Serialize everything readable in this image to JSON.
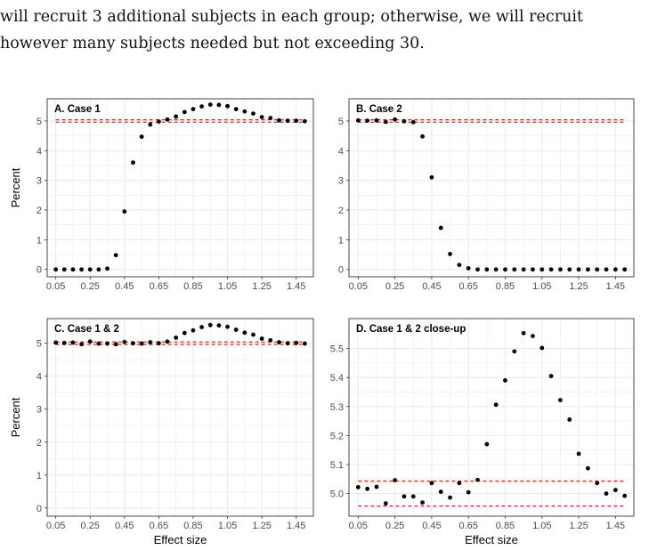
{
  "text": {
    "line1": "will recruit 3 additional subjects in each group; otherwise, we will recruit",
    "line2": "however many subjects needed but not exceeding 30."
  },
  "colors": {
    "points": "#000000",
    "reference_lines": "#e41a1c",
    "grid": "#ebebeb",
    "frame": "#333333"
  },
  "chart_data": [
    {
      "type": "scatter",
      "title": "A. Case 1",
      "xlabel": "",
      "ylabel": "Percent",
      "xlim": [
        0.05,
        1.5
      ],
      "ylim": [
        0,
        5.5
      ],
      "xticks": [
        "0.05",
        "0.25",
        "0.45",
        "0.65",
        "0.85",
        "1.05",
        "1.25",
        "1.45"
      ],
      "yticks": [
        "0",
        "1",
        "2",
        "3",
        "4",
        "5"
      ],
      "hlines": [
        4.96,
        5.04
      ],
      "x": [
        0.05,
        0.1,
        0.15,
        0.2,
        0.25,
        0.3,
        0.35,
        0.4,
        0.45,
        0.5,
        0.55,
        0.6,
        0.65,
        0.7,
        0.75,
        0.8,
        0.85,
        0.9,
        0.95,
        1.0,
        1.05,
        1.1,
        1.15,
        1.2,
        1.25,
        1.3,
        1.35,
        1.4,
        1.45,
        1.5
      ],
      "y": [
        0,
        0,
        0,
        0,
        0,
        0,
        0.03,
        0.48,
        1.95,
        3.6,
        4.47,
        4.88,
        4.98,
        5.05,
        5.15,
        5.3,
        5.4,
        5.49,
        5.55,
        5.54,
        5.5,
        5.4,
        5.32,
        5.25,
        5.13,
        5.1,
        5.02,
        5.01,
        5.01,
        4.99
      ]
    },
    {
      "type": "scatter",
      "title": "B. Case 2",
      "xlabel": "",
      "ylabel": "",
      "xlim": [
        0.05,
        1.5
      ],
      "ylim": [
        0,
        5.5
      ],
      "xticks": [
        "0.05",
        "0.25",
        "0.45",
        "0.65",
        "0.85",
        "1.05",
        "1.25",
        "1.45"
      ],
      "yticks": [
        "0",
        "1",
        "2",
        "3",
        "4",
        "5"
      ],
      "hlines": [
        4.96,
        5.04
      ],
      "x": [
        0.05,
        0.1,
        0.15,
        0.2,
        0.25,
        0.3,
        0.35,
        0.4,
        0.45,
        0.5,
        0.55,
        0.6,
        0.65,
        0.7,
        0.75,
        0.8,
        0.85,
        0.9,
        0.95,
        1.0,
        1.05,
        1.1,
        1.15,
        1.2,
        1.25,
        1.3,
        1.35,
        1.4,
        1.45,
        1.5
      ],
      "y": [
        5.02,
        5.01,
        5.02,
        4.97,
        5.05,
        4.99,
        4.96,
        4.48,
        3.1,
        1.4,
        0.52,
        0.15,
        0.04,
        0,
        0,
        0,
        0,
        0,
        0,
        0,
        0,
        0,
        0,
        0,
        0,
        0,
        0,
        0,
        0,
        0
      ]
    },
    {
      "type": "scatter",
      "title": "C. Case 1 & 2",
      "xlabel": "Effect size",
      "ylabel": "Percent",
      "xlim": [
        0.05,
        1.5
      ],
      "ylim": [
        0,
        5.5
      ],
      "xticks": [
        "0.05",
        "0.25",
        "0.45",
        "0.65",
        "0.85",
        "1.05",
        "1.25",
        "1.45"
      ],
      "yticks": [
        "0",
        "1",
        "2",
        "3",
        "4",
        "5"
      ],
      "hlines": [
        4.96,
        5.04
      ],
      "x": [
        0.05,
        0.1,
        0.15,
        0.2,
        0.25,
        0.3,
        0.35,
        0.4,
        0.45,
        0.5,
        0.55,
        0.6,
        0.65,
        0.7,
        0.75,
        0.8,
        0.85,
        0.9,
        0.95,
        1.0,
        1.05,
        1.1,
        1.15,
        1.2,
        1.25,
        1.3,
        1.35,
        1.4,
        1.45,
        1.5
      ],
      "y": [
        5.02,
        5.01,
        5.02,
        4.97,
        5.05,
        4.99,
        4.99,
        4.97,
        5.04,
        5.0,
        4.99,
        5.03,
        5.0,
        5.05,
        5.17,
        5.31,
        5.39,
        5.49,
        5.55,
        5.54,
        5.5,
        5.41,
        5.32,
        5.26,
        5.14,
        5.09,
        5.03,
        5.0,
        5.01,
        4.99
      ]
    },
    {
      "type": "scatter",
      "title": "D. Case 1 & 2 close-up",
      "xlabel": "Effect size",
      "ylabel": "",
      "xlim": [
        0.05,
        1.5
      ],
      "ylim": [
        4.95,
        5.575
      ],
      "xticks": [
        "0.05",
        "0.25",
        "0.45",
        "0.65",
        "0.85",
        "1.05",
        "1.25",
        "1.45"
      ],
      "yticks": [
        "5.0",
        "5.1",
        "5.2",
        "5.3",
        "5.4",
        "5.5"
      ],
      "hlines": [
        4.957,
        5.043
      ],
      "x": [
        0.05,
        0.1,
        0.15,
        0.2,
        0.25,
        0.3,
        0.35,
        0.4,
        0.45,
        0.5,
        0.55,
        0.6,
        0.65,
        0.7,
        0.75,
        0.8,
        0.85,
        0.9,
        0.95,
        1.0,
        1.05,
        1.1,
        1.15,
        1.2,
        1.25,
        1.3,
        1.35,
        1.4,
        1.45,
        1.5
      ],
      "y": [
        5.022,
        5.016,
        5.023,
        4.966,
        5.046,
        4.99,
        4.99,
        4.969,
        5.036,
        5.006,
        4.986,
        5.036,
        5.004,
        5.047,
        5.17,
        5.306,
        5.39,
        5.49,
        5.553,
        5.543,
        5.502,
        5.405,
        5.322,
        5.255,
        5.137,
        5.087,
        5.036,
        5.0,
        5.012,
        4.992
      ]
    }
  ]
}
